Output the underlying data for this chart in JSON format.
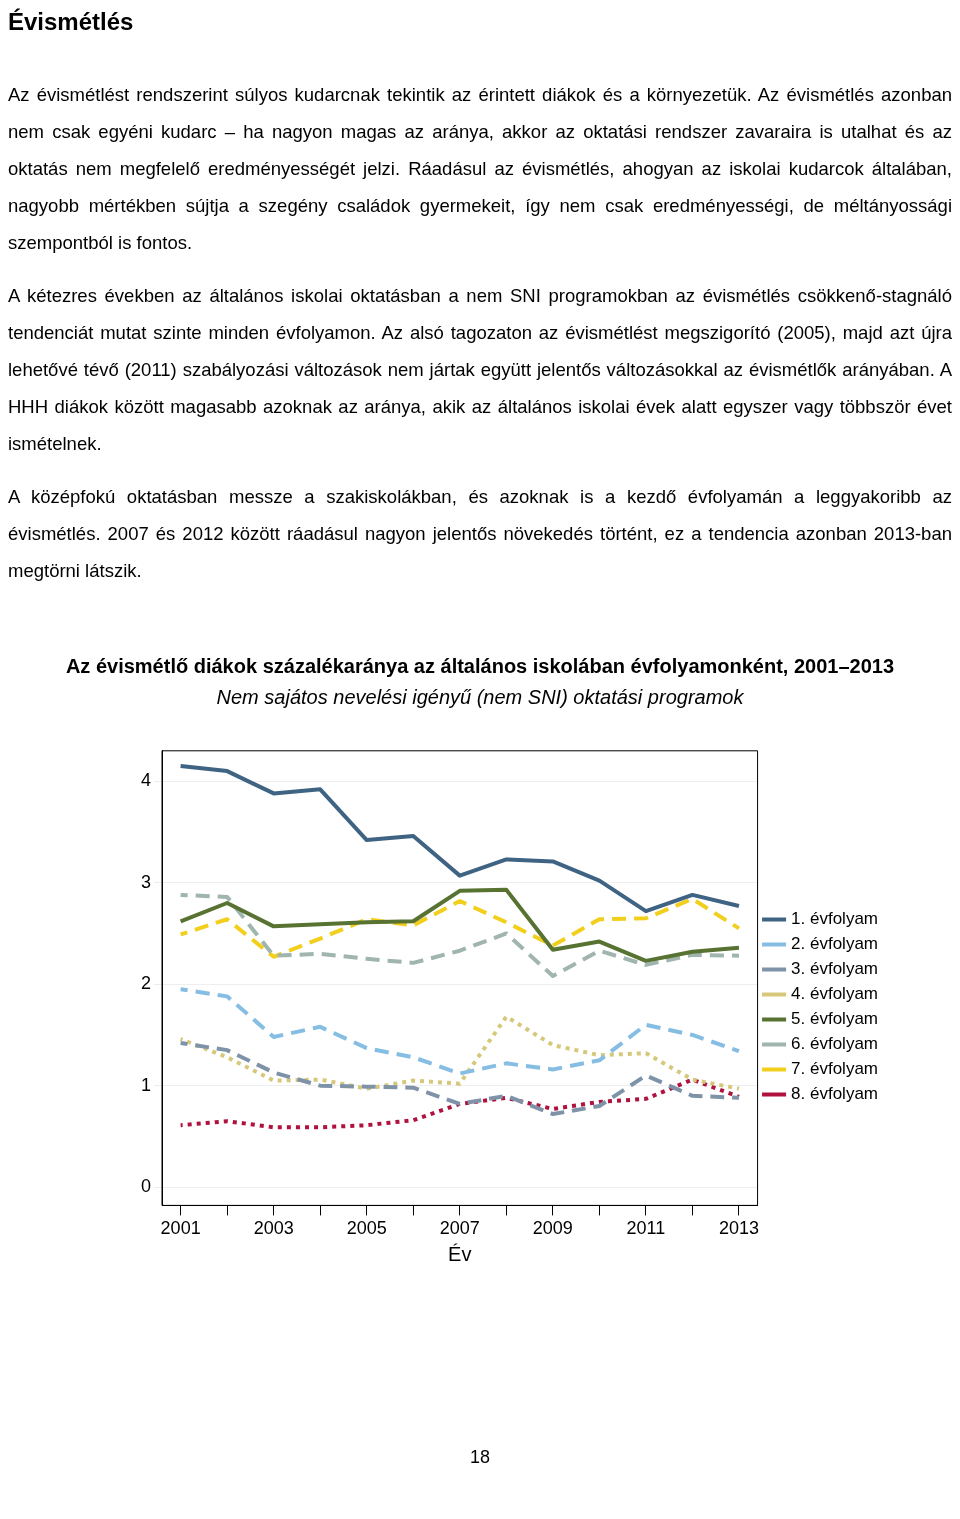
{
  "chart_data": {
    "type": "line",
    "title": "Az évismétlő diákok százalékaránya az általános iskolában évfolyamonként, 2001–2013",
    "subtitle": "Nem sajátos nevelési igényű (nem SNI) oktatási programok",
    "xlabel": "Év",
    "annotations": [
      "Évismétlés",
      "Az évismétlést rendszerint súlyos kudarcnak tekintik az érintett diákok és a környezetük. Az évismétlés azonban nem csak egyéni kudarc – ha nagyon magas az aránya, akkor az oktatási rendszer zavaraira is utalhat és az oktatás nem megfelelő eredményességét jelzi. Ráadásul az évismétlés, ahogyan az iskolai kudarcok általában, nagyobb mértékben sújtja a szegény családok gyermekeit, így nem csak eredményességi, de méltányossági szempontból is fontos.",
      "A kétezres években az általános iskolai oktatásban a nem SNI programokban az évismétlés csökkenő-stagnáló tendenciát mutat szinte minden évfolyamon. Az alsó tagozaton az évismétlést megszigorító (2005), majd azt újra lehetővé tévő (2011) szabályozási változások nem jártak együtt jelentős változásokkal az évismétlők arányában. A HHH diákok között magasabb azoknak az aránya, akik az általános iskolai évek alatt egyszer vagy többször évet ismételnek.",
      "A középfokú oktatásban messze a szakiskolákban, és azoknak is a kezdő évfolyamán a leggyakoribb az évismétlés. 2007 és 2012 között ráadásul nagyon jelentős növekedés történt, ez a tendencia azonban 2013-ban megtörni látszik.",
      "18"
    ],
    "x": [
      2001,
      2002,
      2003,
      2004,
      2005,
      2006,
      2007,
      2008,
      2009,
      2010,
      2011,
      2012,
      2013
    ],
    "xlim": [
      2000.6,
      2013.4
    ],
    "xticks": [
      2001,
      {
        "value": 2002,
        "label": null
      },
      2003,
      {
        "value": 2004,
        "label": null
      },
      2005,
      {
        "value": 2006,
        "label": null
      },
      2007,
      {
        "value": 2008,
        "label": null
      },
      2009,
      {
        "value": 2010,
        "label": null
      },
      2011,
      {
        "value": 2012,
        "label": null
      },
      2013
    ],
    "ylim": [
      -0.18,
      4.3
    ],
    "yticks": [
      0,
      1,
      2,
      3,
      4
    ],
    "grid": "y",
    "legend": "right",
    "marker": "none",
    "series": [
      {
        "name": "1. évfolyam",
        "color": "#3f6382",
        "line_style": "solid",
        "values": [
          4.15,
          4.1,
          3.88,
          3.92,
          3.42,
          3.46,
          3.07,
          3.23,
          3.21,
          3.02,
          2.72,
          2.88,
          2.77
        ]
      },
      {
        "name": "2. évfolyam",
        "color": "#86bde3",
        "line_style": "dashed",
        "values": [
          1.95,
          1.88,
          1.48,
          1.58,
          1.37,
          1.28,
          1.12,
          1.22,
          1.16,
          1.25,
          1.6,
          1.5,
          1.34
        ]
      },
      {
        "name": "3. évfolyam",
        "color": "#7f93a8",
        "line_style": "dashed",
        "values": [
          1.42,
          1.35,
          1.13,
          1.0,
          0.99,
          0.98,
          0.82,
          0.9,
          0.72,
          0.8,
          1.1,
          0.9,
          0.88
        ]
      },
      {
        "name": "4. évfolyam",
        "color": "#d6c87a",
        "line_style": "dotted",
        "values": [
          1.46,
          1.28,
          1.05,
          1.06,
          0.97,
          1.05,
          1.02,
          1.68,
          1.4,
          1.3,
          1.32,
          1.06,
          0.97
        ]
      },
      {
        "name": "5. évfolyam",
        "color": "#587232",
        "line_style": "solid",
        "values": [
          2.62,
          2.8,
          2.57,
          2.59,
          2.61,
          2.62,
          2.92,
          2.93,
          2.34,
          2.42,
          2.23,
          2.32,
          2.36
        ]
      },
      {
        "name": "6. évfolyam",
        "color": "#9fb5ad",
        "line_style": "dashed",
        "values": [
          2.88,
          2.86,
          2.28,
          2.3,
          2.25,
          2.21,
          2.33,
          2.5,
          2.08,
          2.33,
          2.19,
          2.29,
          2.28
        ]
      },
      {
        "name": "7. évfolyam",
        "color": "#f2cf1d",
        "line_style": "dashed",
        "values": [
          2.49,
          2.64,
          2.27,
          2.45,
          2.64,
          2.58,
          2.82,
          2.61,
          2.38,
          2.64,
          2.65,
          2.84,
          2.55
        ]
      },
      {
        "name": "8. évfolyam",
        "color": "#b0123f",
        "line_style": "dotted",
        "values": [
          0.61,
          0.65,
          0.59,
          0.59,
          0.61,
          0.66,
          0.82,
          0.88,
          0.77,
          0.84,
          0.87,
          1.06,
          0.89
        ]
      }
    ]
  }
}
